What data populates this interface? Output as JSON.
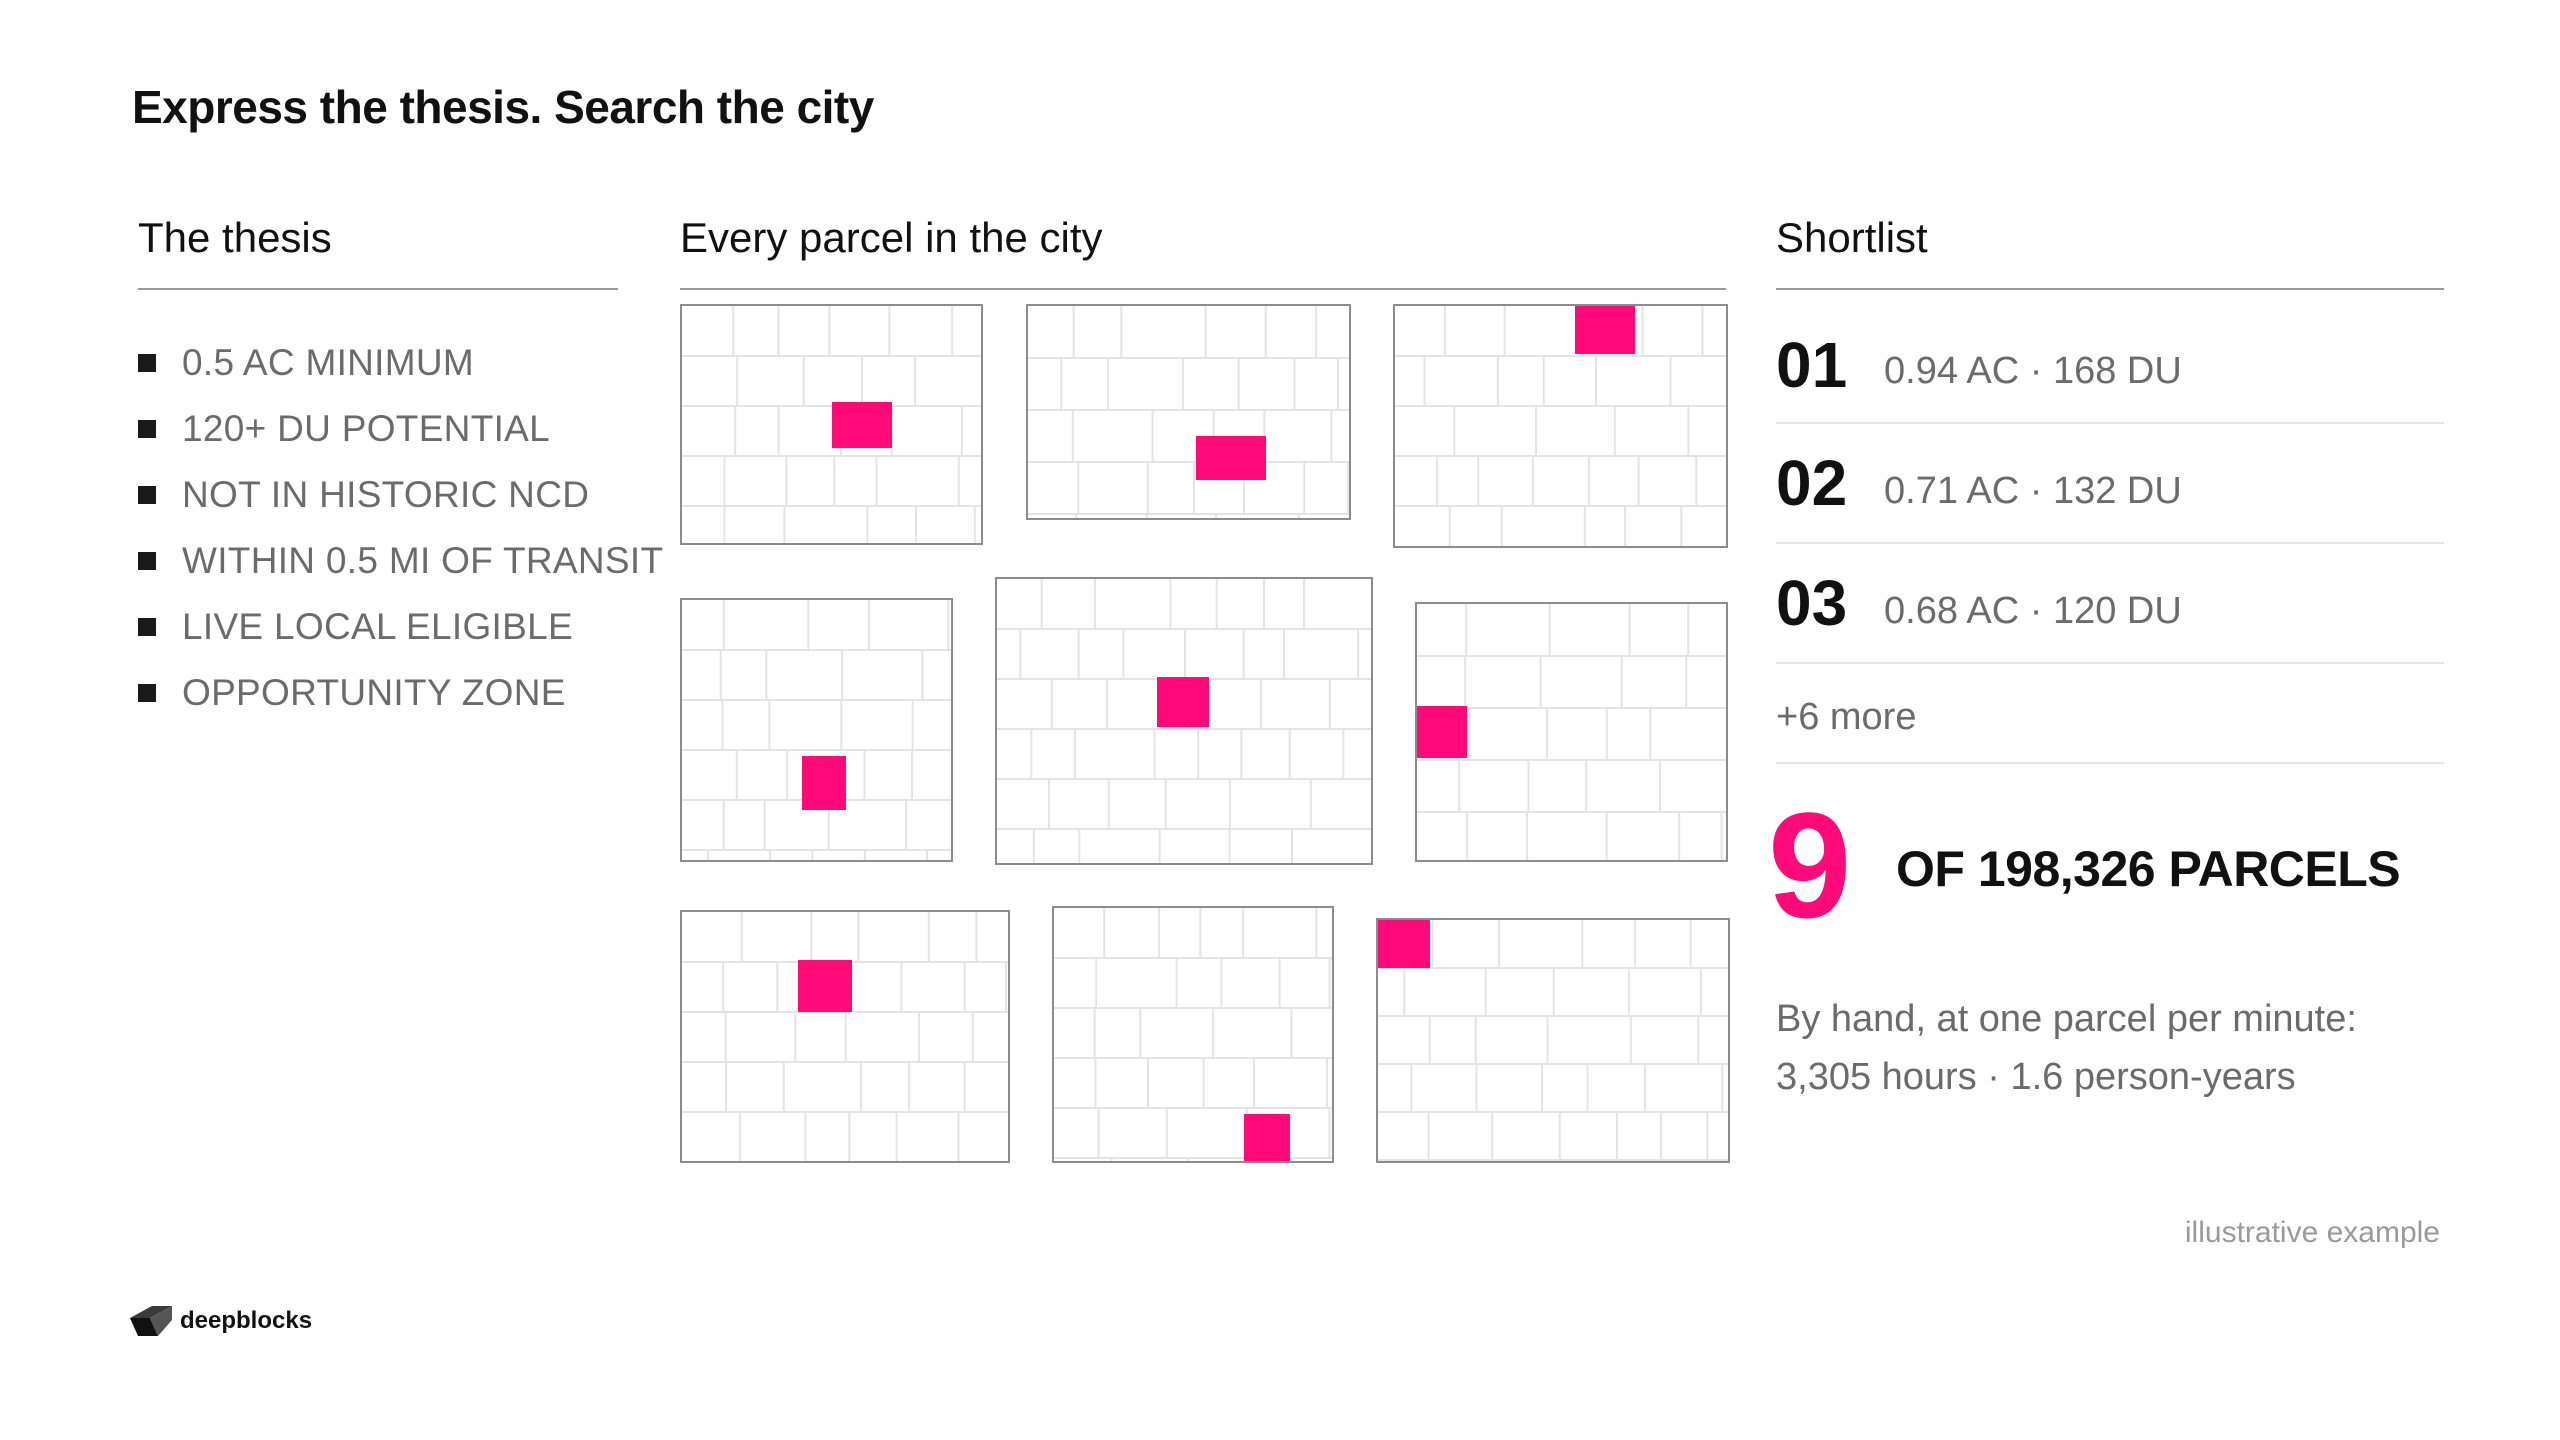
{
  "title": "Express the thesis. Search the city",
  "thesis": {
    "heading": "The thesis",
    "items": [
      "0.5 AC MINIMUM",
      "120+ DU POTENTIAL",
      "NOT IN HISTORIC NCD",
      "WITHIN 0.5 MI OF TRANSIT",
      "LIVE LOCAL ELIGIBLE",
      "OPPORTUNITY ZONE"
    ]
  },
  "parcels": {
    "heading": "Every parcel in the city"
  },
  "shortlist": {
    "heading": "Shortlist",
    "items": [
      {
        "rank": "01",
        "meta": "0.94 AC · 168 DU"
      },
      {
        "rank": "02",
        "meta": "0.71 AC · 132 DU"
      },
      {
        "rank": "03",
        "meta": "0.68 AC · 120 DU"
      }
    ],
    "more": "+6 more",
    "count": "9",
    "count_label": "OF 198,326 PARCELS",
    "hand_line1": "By hand, at one parcel per minute:",
    "hand_line2": "3,305 hours · 1.6 person-years"
  },
  "footnote": "illustrative example",
  "brand": {
    "name": "deepblocks",
    "highlight_color": "#ff0a78"
  }
}
